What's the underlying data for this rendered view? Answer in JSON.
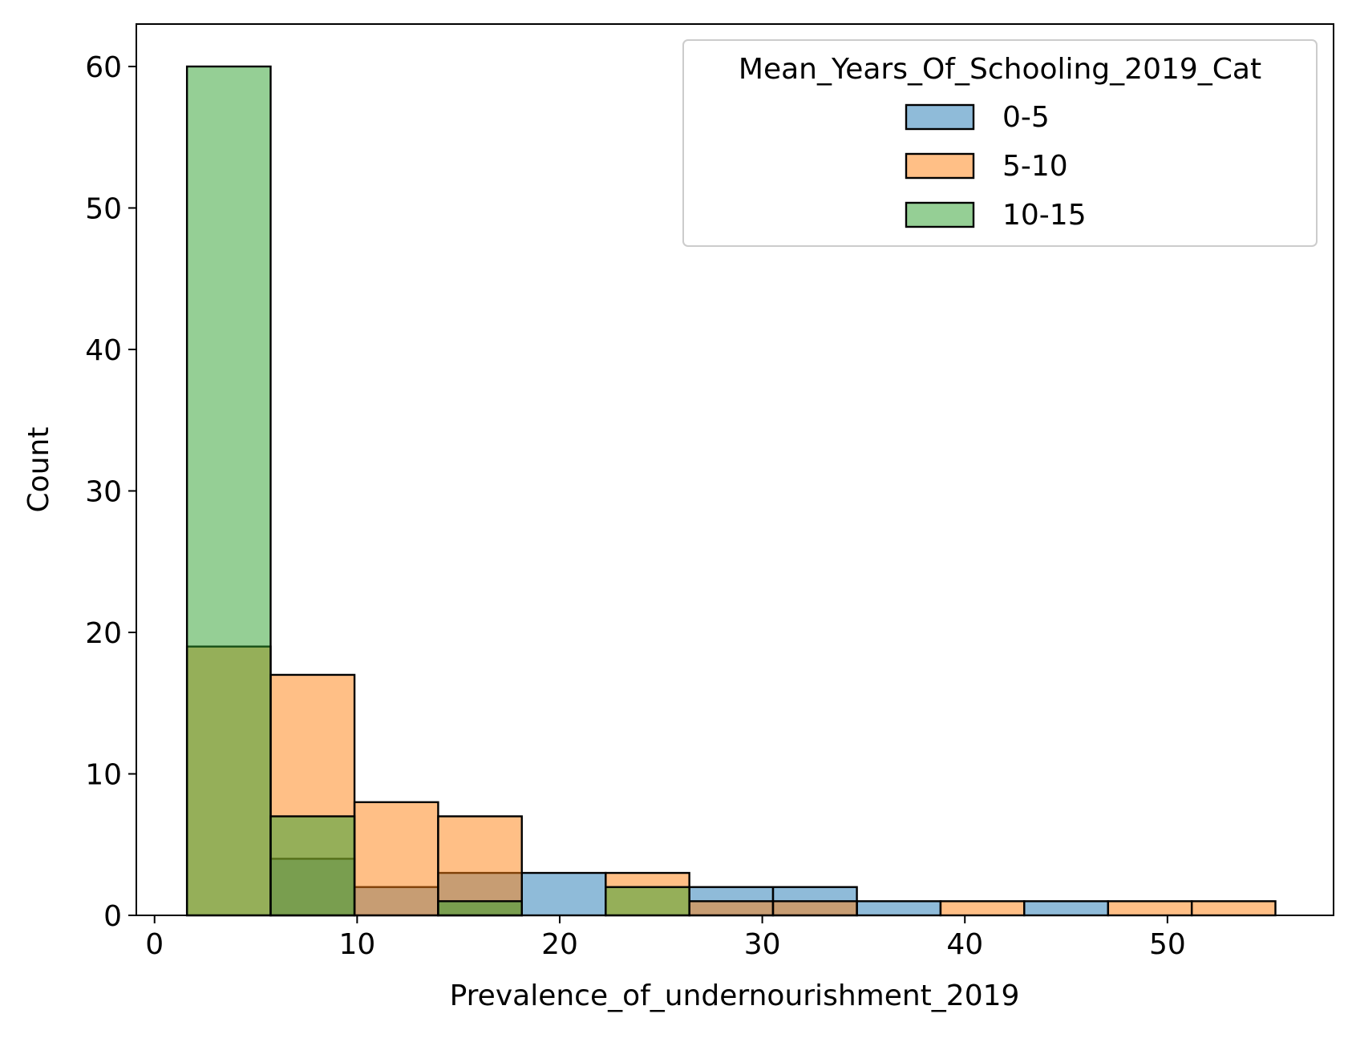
{
  "chart_data": {
    "type": "bar",
    "subtype": "overlaid-histogram",
    "title": "",
    "xlabel": "Prevalence_of_undernourishment_2019",
    "ylabel": "Count",
    "xlim": [
      -0.9,
      58.2
    ],
    "ylim": [
      0,
      63
    ],
    "xticks": [
      0,
      10,
      20,
      30,
      40,
      50
    ],
    "yticks": [
      0,
      10,
      20,
      30,
      40,
      50,
      60
    ],
    "bin_edges": [
      1.6,
      5.73,
      9.87,
      14.0,
      18.13,
      22.27,
      26.4,
      30.53,
      34.67,
      38.8,
      42.93,
      47.07,
      51.2,
      55.33
    ],
    "grid": false,
    "legend": {
      "title": "Mean_Years_Of_Schooling_2019_Cat",
      "placement": "top-right"
    },
    "series": [
      {
        "name": "0-5",
        "color": "#1f77b4",
        "values": [
          0,
          4,
          2,
          3,
          3,
          0,
          2,
          2,
          1,
          0,
          1,
          0,
          0
        ]
      },
      {
        "name": "5-10",
        "color": "#ff7f0e",
        "values": [
          19,
          17,
          8,
          7,
          0,
          3,
          1,
          1,
          0,
          1,
          0,
          1,
          1
        ]
      },
      {
        "name": "10-15",
        "color": "#2ca02c",
        "values": [
          60,
          7,
          0,
          1,
          0,
          2,
          0,
          0,
          0,
          0,
          0,
          0,
          0
        ]
      }
    ]
  }
}
